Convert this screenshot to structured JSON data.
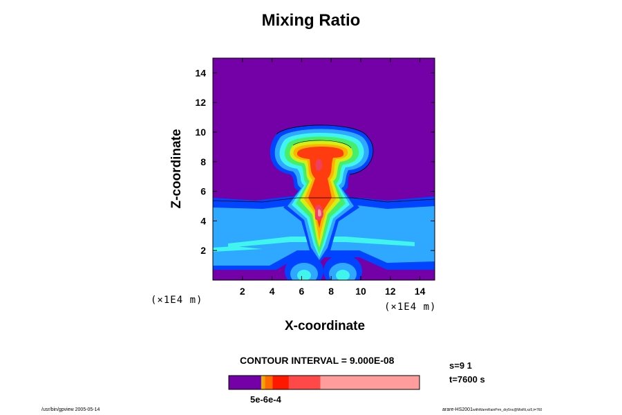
{
  "chart_data": {
    "type": "contour",
    "title": "Mixing Ratio",
    "xlabel": "X-coordinate",
    "ylabel": "Z-coordinate",
    "x_unit": "(×1E4 m)",
    "y_unit": "(×1E4 m)",
    "xlim": [
      0,
      15
    ],
    "ylim": [
      0,
      15
    ],
    "x_ticks": [
      "2",
      "4",
      "6",
      "8",
      "10",
      "12",
      "14"
    ],
    "y_ticks": [
      "2",
      "4",
      "6",
      "8",
      "10",
      "12",
      "14"
    ],
    "contour_interval": "CONTOUR INTERVAL = 9.000E-08",
    "colors": [
      "#7400a8",
      "#0044ff",
      "#2fa8ff",
      "#3ff5ee",
      "#46ee6a",
      "#d5ee16",
      "#ffb300",
      "#ff3b10",
      "#ef4060",
      "#ff9a9a"
    ],
    "colorbar": {
      "segments": [
        {
          "color": "#7400a8",
          "fraction": 0.17
        },
        {
          "color": "#c8b400",
          "fraction": 0.005
        },
        {
          "color": "#f5a000",
          "fraction": 0.015
        },
        {
          "color": "#ff6a00",
          "fraction": 0.04
        },
        {
          "color": "#ff1800",
          "fraction": 0.085
        },
        {
          "color": "#ff4848",
          "fraction": 0.165
        },
        {
          "color": "#ff9c9c",
          "fraction": 0.52
        }
      ],
      "tick_label": "5e-6e-4"
    }
  },
  "info": {
    "s": "s=9 1",
    "t": "t=7600 s"
  },
  "footer": {
    "left": "/usr/bin/gpview 2005-05-14",
    "right": "arare-HS2001",
    "right_small": "withWarmRainPrm_dry5nc@MixRt,xz5,t=760"
  }
}
